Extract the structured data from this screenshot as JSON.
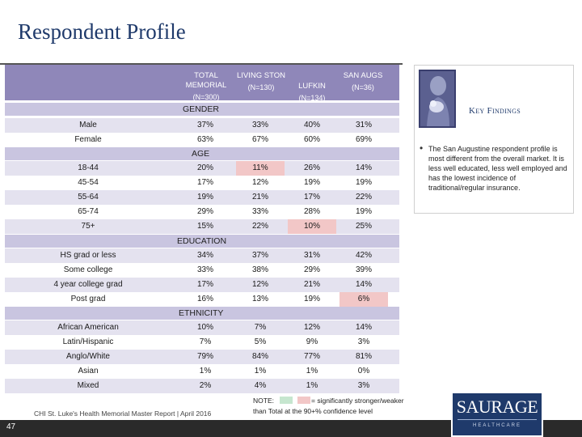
{
  "title": "Respondent Profile",
  "columns": [
    {
      "label": "TOTAL MEMORIAL",
      "n": "(N=300)"
    },
    {
      "label": "LIVING STON",
      "n": "(N=130)"
    },
    {
      "label": "LUFKIN",
      "n": "(N=134)"
    },
    {
      "label": "SAN AUGS",
      "n": "(N=36)"
    }
  ],
  "sections": {
    "gender": "GENDER",
    "age": "AGE",
    "education": "EDUCATION",
    "ethnicity": "ETHNICITY"
  },
  "rows": {
    "gender": [
      {
        "label": "Male",
        "values": [
          "37%",
          "33%",
          "40%",
          "31%"
        ],
        "marks": [
          "",
          "",
          "",
          ""
        ]
      },
      {
        "label": "Female",
        "values": [
          "63%",
          "67%",
          "60%",
          "69%"
        ],
        "marks": [
          "",
          "",
          "",
          ""
        ]
      }
    ],
    "age": [
      {
        "label": "18-44",
        "values": [
          "20%",
          "11%",
          "26%",
          "14%"
        ],
        "marks": [
          "",
          "r",
          "",
          ""
        ]
      },
      {
        "label": "45-54",
        "values": [
          "17%",
          "12%",
          "19%",
          "19%"
        ],
        "marks": [
          "",
          "",
          "",
          ""
        ]
      },
      {
        "label": "55-64",
        "values": [
          "19%",
          "21%",
          "17%",
          "22%"
        ],
        "marks": [
          "",
          "",
          "",
          ""
        ]
      },
      {
        "label": "65-74",
        "values": [
          "29%",
          "33%",
          "28%",
          "19%"
        ],
        "marks": [
          "",
          "",
          "",
          ""
        ]
      },
      {
        "label": "75+",
        "values": [
          "15%",
          "22%",
          "10%",
          "25%"
        ],
        "marks": [
          "",
          "",
          "r",
          ""
        ]
      }
    ],
    "education": [
      {
        "label": "HS grad or less",
        "values": [
          "34%",
          "37%",
          "31%",
          "42%"
        ],
        "marks": [
          "",
          "",
          "",
          ""
        ]
      },
      {
        "label": "Some college",
        "values": [
          "33%",
          "38%",
          "29%",
          "39%"
        ],
        "marks": [
          "",
          "",
          "",
          ""
        ]
      },
      {
        "label": "4 year college grad",
        "values": [
          "17%",
          "12%",
          "21%",
          "14%"
        ],
        "marks": [
          "",
          "",
          "",
          ""
        ]
      },
      {
        "label": "Post grad",
        "values": [
          "16%",
          "13%",
          "19%",
          "6%"
        ],
        "marks": [
          "",
          "",
          "",
          "r"
        ]
      }
    ],
    "ethnicity": [
      {
        "label": "African American",
        "values": [
          "10%",
          "7%",
          "12%",
          "14%"
        ],
        "marks": [
          "",
          "",
          "",
          ""
        ]
      },
      {
        "label": "Latin/Hispanic",
        "values": [
          "7%",
          "5%",
          "9%",
          "3%"
        ],
        "marks": [
          "",
          "",
          "",
          ""
        ]
      },
      {
        "label": "Anglo/White",
        "values": [
          "79%",
          "84%",
          "77%",
          "81%"
        ],
        "marks": [
          "",
          "",
          "",
          ""
        ]
      },
      {
        "label": "Asian",
        "values": [
          "1%",
          "1%",
          "1%",
          "0%"
        ],
        "marks": [
          "",
          "",
          "",
          ""
        ]
      },
      {
        "label": "Mixed",
        "values": [
          "2%",
          "4%",
          "1%",
          "3%"
        ],
        "marks": [
          "",
          "",
          "",
          ""
        ]
      }
    ]
  },
  "key_findings": {
    "title": "Key Findings",
    "bullet": "The San Augustine respondent profile is most different from the overall market. It is less well educated, less well employed and has the lowest incidence of traditional/regular insurance."
  },
  "note": {
    "label": "NOTE:",
    "legend_text": "= significantly stronger/weaker",
    "line2": "than Total at the 90+% confidence level"
  },
  "footer": {
    "source": "CHI St. Luke's Health Memorial Master Report | April 2016",
    "page_number": "47",
    "logo_text": "SAURAGE",
    "logo_sub": "HEALTHCARE"
  },
  "colors": {
    "header": "#8f87b9",
    "section": "#c9c5e0",
    "row_shade": "#e4e2ef",
    "significantly_stronger": "#c6e6cf",
    "significantly_weaker": "#f2c7c7"
  }
}
